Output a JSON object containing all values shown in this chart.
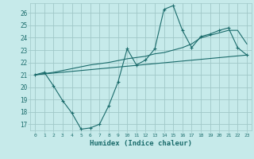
{
  "xlabel": "Humidex (Indice chaleur)",
  "background_color": "#c6eaea",
  "grid_color": "#a0c8c8",
  "line_color": "#1a6b6b",
  "xlim": [
    -0.5,
    23.5
  ],
  "ylim": [
    16.5,
    26.8
  ],
  "xticks": [
    0,
    1,
    2,
    3,
    4,
    5,
    6,
    7,
    8,
    9,
    10,
    11,
    12,
    13,
    14,
    15,
    16,
    17,
    18,
    19,
    20,
    21,
    22,
    23
  ],
  "yticks": [
    17,
    18,
    19,
    20,
    21,
    22,
    23,
    24,
    25,
    26
  ],
  "line1_x": [
    0,
    1,
    2,
    3,
    4,
    5,
    6,
    7,
    8,
    9,
    10,
    11,
    12,
    13,
    14,
    15,
    16,
    17,
    18,
    19,
    20,
    21,
    22,
    23
  ],
  "line1_y": [
    21.0,
    21.2,
    20.1,
    18.9,
    17.9,
    16.6,
    16.7,
    17.0,
    18.5,
    20.4,
    23.1,
    21.8,
    22.2,
    23.1,
    26.3,
    26.6,
    24.6,
    23.2,
    24.1,
    24.3,
    24.6,
    24.8,
    23.2,
    22.6
  ],
  "line2_x": [
    0,
    23
  ],
  "line2_y": [
    21.0,
    22.6
  ],
  "line3_x": [
    0,
    2,
    4,
    6,
    8,
    10,
    11,
    12,
    13,
    14,
    15,
    16,
    17,
    18,
    19,
    20,
    21,
    22,
    23
  ],
  "line3_y": [
    21.0,
    21.2,
    21.5,
    21.8,
    22.0,
    22.3,
    22.4,
    22.5,
    22.7,
    22.8,
    23.0,
    23.2,
    23.5,
    24.0,
    24.2,
    24.4,
    24.6,
    24.6,
    23.5
  ]
}
